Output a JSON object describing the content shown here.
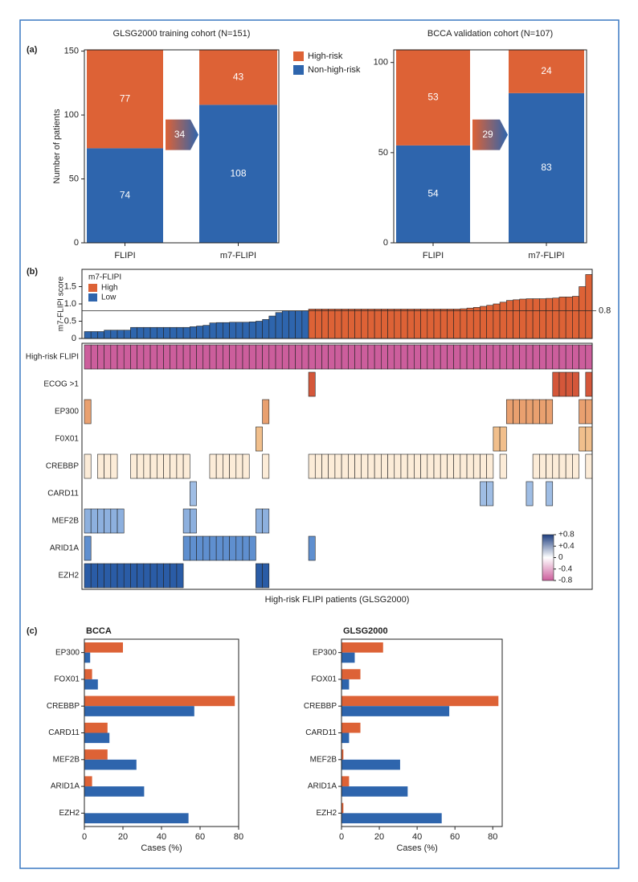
{
  "panel_labels": [
    "(a)",
    "(b)",
    "(c)"
  ],
  "chart_data": [
    {
      "type": "stacked_bar",
      "title": "GLSG2000 training cohort (N=151)",
      "ylabel": "Number of patients",
      "categories": [
        "FLIPI",
        "m7-FLIPI"
      ],
      "series": [
        {
          "name": "High-risk",
          "color": "#dd6236",
          "values": [
            77,
            43
          ]
        },
        {
          "name": "Non-high-risk",
          "color": "#2e65ad",
          "values": [
            74,
            108
          ]
        }
      ],
      "ylim": [
        0,
        151
      ],
      "yticks": [
        0,
        50,
        100,
        150
      ],
      "reclassified": 34,
      "legend": true
    },
    {
      "type": "stacked_bar",
      "title": "BCCA validation cohort (N=107)",
      "categories": [
        "FLIPI",
        "m7-FLIPI"
      ],
      "series": [
        {
          "color": "#dd6236",
          "values": [
            53,
            24
          ]
        },
        {
          "color": "#2e65ad",
          "values": [
            54,
            83
          ]
        }
      ],
      "ylim": [
        0,
        107
      ],
      "yticks": [
        0,
        50,
        100
      ],
      "reclassified": 29,
      "legend": false
    },
    {
      "type": "heatmap",
      "xlabel": "High-risk FLIPI patients (GLSG2000)",
      "score": {
        "ylabel": "m7-FLIPI score",
        "legend_title": "m7-FLIPI",
        "threshold": 0.8,
        "ylim": [
          0,
          2
        ],
        "yticks": [
          0,
          0.5,
          {
            "value": 1,
            "label": "1.0"
          },
          1.5
        ],
        "groups": [
          {
            "name": "High",
            "color": "#dd6236"
          },
          {
            "name": "Low",
            "color": "#2e65ad"
          }
        ],
        "values": [
          0.2,
          0.2,
          0.2,
          0.24,
          0.24,
          0.24,
          0.24,
          0.32,
          0.32,
          0.32,
          0.32,
          0.32,
          0.32,
          0.32,
          0.32,
          0.32,
          0.34,
          0.36,
          0.38,
          0.45,
          0.46,
          0.46,
          0.47,
          0.47,
          0.47,
          0.48,
          0.5,
          0.55,
          0.65,
          0.75,
          0.8,
          0.8,
          0.8,
          0.8,
          0.85,
          0.85,
          0.85,
          0.85,
          0.85,
          0.85,
          0.85,
          0.85,
          0.85,
          0.85,
          0.85,
          0.85,
          0.85,
          0.85,
          0.85,
          0.85,
          0.85,
          0.85,
          0.85,
          0.85,
          0.85,
          0.85,
          0.85,
          0.86,
          0.88,
          0.9,
          0.93,
          0.96,
          1.0,
          1.05,
          1.1,
          1.12,
          1.14,
          1.15,
          1.15,
          1.15,
          1.16,
          1.17,
          1.2,
          1.2,
          1.22,
          1.5,
          1.85
        ]
      },
      "rows": [
        {
          "name": "High-risk FLIPI",
          "color": "#cc5e9c",
          "patients": [
            0,
            1,
            2,
            3,
            4,
            5,
            6,
            7,
            8,
            9,
            10,
            11,
            12,
            13,
            14,
            15,
            16,
            17,
            18,
            19,
            20,
            21,
            22,
            23,
            24,
            25,
            26,
            27,
            28,
            29,
            30,
            31,
            32,
            33,
            34,
            35,
            36,
            37,
            38,
            39,
            40,
            41,
            42,
            43,
            44,
            45,
            46,
            47,
            48,
            49,
            50,
            51,
            52,
            53,
            54,
            55,
            56,
            57,
            58,
            59,
            60,
            61,
            62,
            63,
            64,
            65,
            66,
            67,
            68,
            69,
            70,
            71,
            72,
            73,
            74,
            75,
            76
          ]
        },
        {
          "name": "ECOG >1",
          "color": "#d4573a",
          "patients": [
            34,
            71,
            72,
            73,
            74,
            76
          ]
        },
        {
          "name": "EP300",
          "color": "#e9a06f",
          "patients": [
            0,
            27,
            64,
            65,
            66,
            67,
            68,
            69,
            70,
            75,
            76
          ]
        },
        {
          "name": "F0X01",
          "color": "#f1bf8c",
          "patients": [
            26,
            62,
            63,
            75,
            76
          ]
        },
        {
          "name": "CREBBP",
          "color": "#fcecd8",
          "patients": [
            0,
            2,
            3,
            4,
            7,
            8,
            9,
            10,
            11,
            12,
            13,
            14,
            15,
            19,
            20,
            21,
            22,
            23,
            24,
            27,
            34,
            35,
            36,
            37,
            38,
            39,
            40,
            41,
            42,
            43,
            44,
            45,
            46,
            47,
            48,
            49,
            50,
            51,
            52,
            53,
            54,
            55,
            56,
            57,
            58,
            59,
            60,
            61,
            63,
            68,
            69,
            70,
            71,
            72,
            73,
            74,
            76
          ]
        },
        {
          "name": "CARD11",
          "color": "#9fbde4",
          "patients": [
            16,
            60,
            61,
            67,
            70
          ]
        },
        {
          "name": "MEF2B",
          "color": "#8db0de",
          "patients": [
            0,
            1,
            2,
            3,
            4,
            5,
            15,
            16,
            26,
            27
          ]
        },
        {
          "name": "ARID1A",
          "color": "#5f8fcf",
          "patients": [
            0,
            15,
            16,
            17,
            18,
            19,
            20,
            21,
            22,
            23,
            24,
            25,
            34
          ]
        },
        {
          "name": "EZH2",
          "color": "#2a5ca6",
          "patients": [
            0,
            1,
            2,
            3,
            4,
            5,
            6,
            7,
            8,
            9,
            10,
            11,
            12,
            13,
            14,
            26,
            27
          ]
        }
      ],
      "colorbar": {
        "lim": [
          -0.8,
          0.8
        ],
        "colors": [
          "#cc5e9c",
          "#ffffff",
          "#1f3f80"
        ],
        "ticks": [
          {
            "value": 0.8,
            "label": "+0.8"
          },
          {
            "value": 0.4,
            "label": "+0.4"
          },
          0,
          -0.4,
          -0.8
        ]
      }
    },
    {
      "type": "hbar",
      "title": "BCCA",
      "xlabel": "Cases (%)",
      "categories": [
        "EP300",
        "FOX01",
        "CREBBP",
        "CARD11",
        "MEF2B",
        "ARID1A",
        "EZH2"
      ],
      "series": [
        {
          "color": "#dd6236",
          "values": [
            20,
            4,
            78,
            12,
            12,
            4,
            0
          ]
        },
        {
          "color": "#2e65ad",
          "values": [
            3,
            7,
            57,
            13,
            27,
            31,
            54
          ]
        }
      ],
      "xlim": [
        0,
        80
      ],
      "xticks": [
        0,
        20,
        40,
        60,
        80
      ]
    },
    {
      "type": "hbar",
      "title": "GLSG2000",
      "xlabel": "Cases (%)",
      "categories": [
        "EP300",
        "FOX01",
        "CREBBP",
        "CARD11",
        "MEF2B",
        "ARID1A",
        "EZH2"
      ],
      "series": [
        {
          "color": "#dd6236",
          "values": [
            22,
            10,
            83,
            10,
            1,
            4,
            1
          ]
        },
        {
          "color": "#2e65ad",
          "values": [
            7,
            4,
            57,
            4,
            31,
            35,
            53
          ]
        }
      ],
      "xlim": [
        0,
        85
      ],
      "xticks": [
        0,
        20,
        40,
        60,
        80
      ]
    }
  ]
}
